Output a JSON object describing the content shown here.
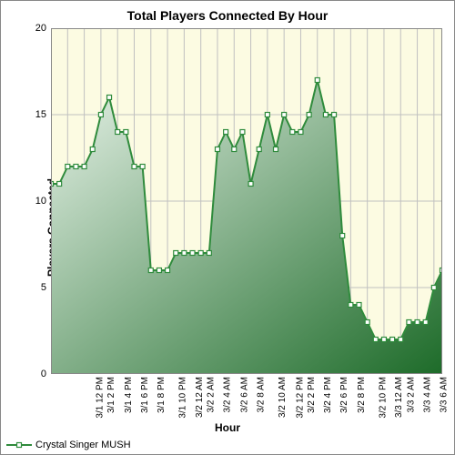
{
  "chart": {
    "type": "area",
    "title": "Total Players Connected By Hour",
    "title_fontsize": 14,
    "title_fontweight": "bold",
    "xlabel": "Hour",
    "ylabel": "Players Connected",
    "label_fontsize": 12,
    "label_fontweight": "bold",
    "tick_fontsize": 11,
    "background_color": "#ffffff",
    "plot_background_color": "#fcfbe2",
    "grid_color": "#c0c0c0",
    "axis_color": "#888888",
    "ylim": [
      0,
      20
    ],
    "ytick_step": 5,
    "yticks": [
      0,
      5,
      10,
      15,
      20
    ],
    "x_categories": [
      "3/1 12 PM",
      "3/1 2 PM",
      "3/1 4 PM",
      "3/1 6 PM",
      "3/1 8 PM",
      "3/1 10 PM",
      "3/2 12 AM",
      "3/2 2 AM",
      "3/2 4 AM",
      "3/2 6 AM",
      "3/2 8 AM",
      "3/2 10 AM",
      "3/2 12 PM",
      "3/2 2 PM",
      "3/2 4 PM",
      "3/2 6 PM",
      "3/2 8 PM",
      "3/2 10 PM",
      "3/3 12 AM",
      "3/3 2 AM",
      "3/3 4 AM",
      "3/3 6 AM",
      "3/3 8 AM",
      "3/3 10 AM"
    ],
    "x_tick_every": 1,
    "series": [
      {
        "name": "Crystal Singer MUSH",
        "line_color": "#2f8b3c",
        "line_width": 2,
        "marker_style": "square",
        "marker_size": 5,
        "marker_fill": "#ffffff",
        "marker_stroke": "#2f8b3c",
        "fill_gradient_from": "#e8f3e9",
        "fill_gradient_to": "#1d6b29",
        "values": [
          11,
          11,
          12,
          12,
          12,
          13,
          15,
          16,
          14,
          14,
          12,
          12,
          6,
          6,
          6,
          7,
          7,
          7,
          7,
          7,
          13,
          14,
          13,
          14,
          11,
          13,
          15,
          13,
          15,
          14,
          14,
          15,
          17,
          15,
          15,
          8,
          4,
          4,
          3,
          2,
          2,
          2,
          2,
          3,
          3,
          3,
          5,
          6
        ]
      }
    ],
    "points_count": 48,
    "legend": {
      "position": "bottom-left",
      "items": [
        "Crystal Singer MUSH"
      ]
    }
  }
}
